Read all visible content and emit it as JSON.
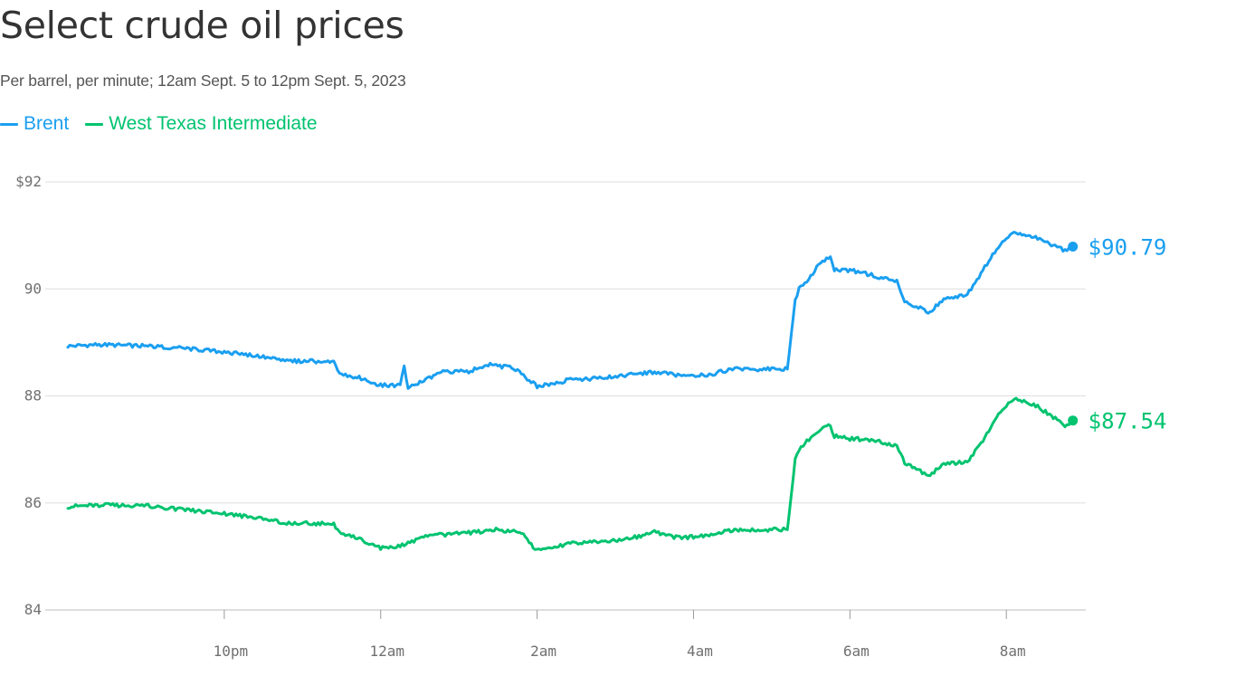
{
  "title": "Select crude oil prices",
  "subtitle": "Per barrel, per minute; 12am Sept. 5 to 12pm Sept. 5, 2023",
  "chart_data": {
    "type": "line",
    "title": "Select crude oil prices",
    "subtitle": "Per barrel, per minute; 12am Sept. 5 to 12pm Sept. 5, 2023",
    "xlabel": "",
    "ylabel": "",
    "ylim": [
      84,
      92
    ],
    "y_ticks": [
      {
        "value": 92,
        "label": "$92"
      },
      {
        "value": 90,
        "label": "90"
      },
      {
        "value": 88,
        "label": "88"
      },
      {
        "value": 86,
        "label": "86"
      },
      {
        "value": 84,
        "label": "84"
      }
    ],
    "xlim": [
      -2,
      10.9
    ],
    "x_ticks": [
      {
        "value": 0,
        "label": "10pm"
      },
      {
        "value": 2,
        "label": "12am"
      },
      {
        "value": 4,
        "label": "2am"
      },
      {
        "value": 6,
        "label": "4am"
      },
      {
        "value": 8,
        "label": "6am"
      },
      {
        "value": 10,
        "label": "8am"
      }
    ],
    "grid": true,
    "legend_position": "top-left",
    "series": [
      {
        "name": "Brent",
        "color": "#1a9ff0",
        "end_label": "$90.79",
        "x": [
          -2.0,
          -1.6,
          -1.0,
          -0.6,
          0.0,
          0.4,
          0.8,
          1.1,
          1.4,
          1.5,
          1.7,
          2.0,
          2.25,
          2.3,
          2.35,
          2.5,
          2.8,
          3.1,
          3.4,
          3.7,
          4.0,
          4.2,
          4.4,
          4.8,
          5.1,
          5.5,
          5.8,
          6.2,
          6.5,
          6.8,
          7.2,
          7.3,
          7.35,
          7.45,
          7.6,
          7.75,
          7.8,
          8.0,
          8.3,
          8.6,
          8.7,
          8.9,
          9.0,
          9.2,
          9.5,
          9.7,
          9.9,
          10.1,
          10.4,
          10.6,
          10.75,
          10.85
        ],
        "y": [
          88.93,
          88.96,
          88.93,
          88.9,
          88.82,
          88.75,
          88.65,
          88.65,
          88.62,
          88.4,
          88.35,
          88.2,
          88.2,
          88.55,
          88.15,
          88.25,
          88.45,
          88.45,
          88.58,
          88.52,
          88.18,
          88.22,
          88.3,
          88.33,
          88.38,
          88.45,
          88.38,
          88.4,
          88.5,
          88.5,
          88.5,
          89.8,
          90.0,
          90.15,
          90.45,
          90.6,
          90.35,
          90.35,
          90.25,
          90.15,
          89.75,
          89.65,
          89.55,
          89.82,
          89.9,
          90.35,
          90.8,
          91.05,
          90.95,
          90.8,
          90.72,
          90.79
        ]
      },
      {
        "name": "West Texas Intermediate",
        "color": "#00c36f",
        "end_label": "$87.54",
        "x": [
          -2.0,
          -1.6,
          -1.0,
          -0.6,
          0.0,
          0.4,
          0.8,
          1.1,
          1.4,
          1.5,
          1.7,
          2.0,
          2.3,
          2.6,
          2.9,
          3.2,
          3.5,
          3.8,
          4.0,
          4.2,
          4.4,
          4.8,
          5.1,
          5.5,
          5.8,
          6.2,
          6.5,
          6.8,
          7.2,
          7.3,
          7.35,
          7.45,
          7.6,
          7.75,
          7.8,
          8.0,
          8.3,
          8.6,
          8.7,
          8.9,
          9.0,
          9.2,
          9.5,
          9.7,
          9.9,
          10.1,
          10.4,
          10.6,
          10.75,
          10.85
        ],
        "y": [
          85.93,
          85.96,
          85.95,
          85.88,
          85.8,
          85.72,
          85.62,
          85.62,
          85.6,
          85.4,
          85.35,
          85.15,
          85.22,
          85.38,
          85.42,
          85.45,
          85.5,
          85.45,
          85.1,
          85.15,
          85.25,
          85.28,
          85.3,
          85.45,
          85.35,
          85.38,
          85.5,
          85.5,
          85.5,
          86.8,
          87.0,
          87.15,
          87.35,
          87.45,
          87.25,
          87.2,
          87.18,
          87.05,
          86.75,
          86.6,
          86.5,
          86.72,
          86.78,
          87.15,
          87.65,
          87.95,
          87.8,
          87.6,
          87.45,
          87.54
        ]
      }
    ]
  }
}
